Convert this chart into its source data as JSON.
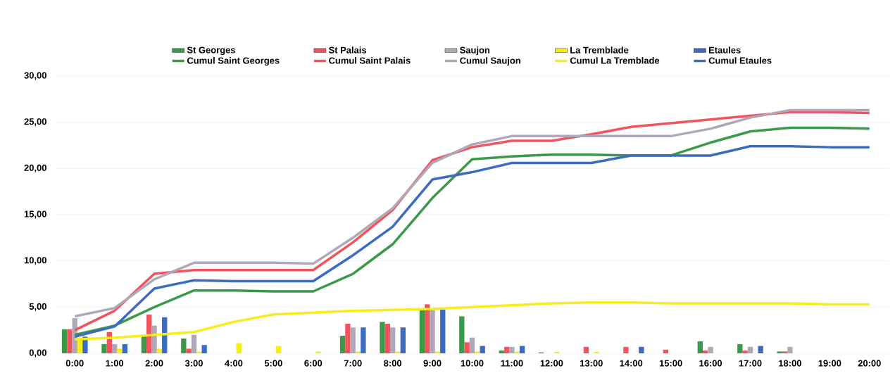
{
  "chart_data": {
    "type": "bar",
    "categories": [
      "0:00",
      "1:00",
      "2:00",
      "3:00",
      "4:00",
      "5:00",
      "6:00",
      "7:00",
      "8:00",
      "9:00",
      "10:00",
      "11:00",
      "12:00",
      "13:00",
      "14:00",
      "15:00",
      "16:00",
      "17:00",
      "18:00",
      "19:00",
      "20:00"
    ],
    "series": [
      {
        "name": "St Georges",
        "type": "bar",
        "color": "#3a9a4a",
        "values": [
          2.6,
          1.0,
          1.9,
          1.6,
          0,
          0,
          0,
          1.9,
          3.4,
          4.7,
          4.0,
          0.3,
          0.1,
          0,
          0,
          0,
          1.3,
          1.0,
          0.2,
          0,
          0
        ]
      },
      {
        "name": "St Palais",
        "type": "bar",
        "color": "#f0545c",
        "values": [
          2.6,
          2.3,
          4.2,
          0.5,
          0,
          0,
          0,
          3.2,
          3.2,
          5.3,
          1.2,
          0.7,
          0,
          0.7,
          0.7,
          0.4,
          0.3,
          0.3,
          0.2,
          0,
          0
        ]
      },
      {
        "name": "Saujon",
        "type": "bar",
        "color": "#b0a8b8",
        "values": [
          3.8,
          1.0,
          3.0,
          2.0,
          0,
          0,
          0,
          2.8,
          2.8,
          4.7,
          1.7,
          0.7,
          0,
          0,
          0,
          0,
          0.7,
          0.7,
          0.7,
          0,
          0
        ]
      },
      {
        "name": "La Tremblade",
        "type": "bar",
        "color": "#f5ee1c",
        "values": [
          1.7,
          0.5,
          0.5,
          0.2,
          1.1,
          0.8,
          0.2,
          0.2,
          0.2,
          0.2,
          0.2,
          0.2,
          0.15,
          0.15,
          0,
          0,
          0,
          0,
          0,
          0,
          0
        ]
      },
      {
        "name": "Etaules",
        "type": "bar",
        "color": "#3d6bbf",
        "values": [
          1.8,
          1.0,
          3.9,
          0.9,
          0,
          0,
          0,
          2.8,
          2.8,
          4.8,
          0.8,
          0.8,
          0,
          0,
          0.7,
          0,
          0,
          0.8,
          0,
          0,
          0
        ]
      },
      {
        "name": "Cumul Saint Georges",
        "type": "line",
        "color": "#3a9a4a",
        "values": [
          2.0,
          3.0,
          5.0,
          6.8,
          6.8,
          6.7,
          6.7,
          8.6,
          11.8,
          16.8,
          21.0,
          21.3,
          21.5,
          21.5,
          21.4,
          21.4,
          22.8,
          24.0,
          24.4,
          24.4,
          24.3
        ]
      },
      {
        "name": "Cumul Saint Palais",
        "type": "line",
        "color": "#f0545c",
        "values": [
          2.5,
          4.6,
          8.6,
          9.0,
          9.0,
          9.0,
          9.0,
          12.0,
          15.5,
          20.9,
          22.3,
          23.0,
          23.0,
          23.7,
          24.5,
          24.9,
          25.3,
          25.7,
          26.1,
          26.1,
          26.0
        ]
      },
      {
        "name": "Cumul Saujon",
        "type": "line",
        "color": "#b0a8b8",
        "values": [
          4.0,
          4.9,
          8.0,
          9.8,
          9.8,
          9.8,
          9.7,
          12.5,
          15.7,
          20.6,
          22.6,
          23.5,
          23.5,
          23.5,
          23.5,
          23.5,
          24.3,
          25.5,
          26.3,
          26.3,
          26.3
        ]
      },
      {
        "name": "Cumul La Tremblade",
        "type": "line",
        "color": "#f5ee1c",
        "values": [
          1.5,
          1.7,
          2.0,
          2.3,
          3.4,
          4.2,
          4.4,
          4.6,
          4.7,
          4.8,
          5.0,
          5.2,
          5.4,
          5.5,
          5.5,
          5.4,
          5.4,
          5.4,
          5.4,
          5.3,
          5.3
        ]
      },
      {
        "name": "Cumul Etaules",
        "type": "line",
        "color": "#3d6bbf",
        "values": [
          1.8,
          2.9,
          7.0,
          7.9,
          7.8,
          7.8,
          7.8,
          10.6,
          13.7,
          18.8,
          19.6,
          20.6,
          20.6,
          20.6,
          21.4,
          21.4,
          21.4,
          22.4,
          22.4,
          22.3,
          22.3
        ]
      }
    ],
    "ylim": [
      0,
      30
    ],
    "yticks": [
      {
        "value": 0,
        "label": "0,00"
      },
      {
        "value": 5,
        "label": "5,00"
      },
      {
        "value": 10,
        "label": "10,00"
      },
      {
        "value": 15,
        "label": "15,00"
      },
      {
        "value": 20,
        "label": "20,00"
      },
      {
        "value": 25,
        "label": "25,00"
      },
      {
        "value": 30,
        "label": "30,00"
      }
    ],
    "grid": "y",
    "legend": "top",
    "marker": "none",
    "line_style": "solid"
  }
}
